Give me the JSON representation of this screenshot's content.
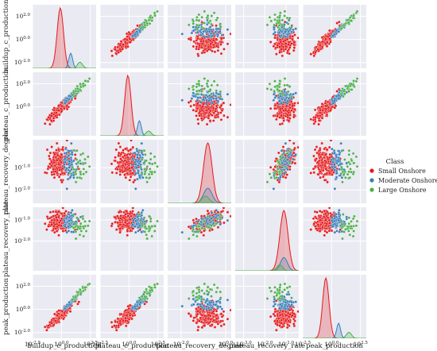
{
  "chart_data": {
    "type": "scatter",
    "subtype": "pairplot",
    "variables": [
      {
        "key": "buildup_c_production",
        "label": "buildup_c_production",
        "scale": "log",
        "lim_log10": [
          -2.5,
          3.0
        ],
        "row_ticks_log10": [
          -2.0,
          0.0,
          2.0
        ],
        "row_tick_labels": [
          "10^-2.0",
          "10^0.0",
          "10^2.0"
        ],
        "col_ticks_log10": [
          -2.5,
          0.0,
          2.5
        ],
        "col_tick_labels": [
          "10^-2.5",
          "10^0.0",
          "10^2.5"
        ]
      },
      {
        "key": "plateau_c_production",
        "label": "plateau_c_production",
        "scale": "log",
        "lim_log10": [
          -2.5,
          3.0
        ],
        "row_ticks_log10": [
          0.0,
          2.0
        ],
        "row_tick_labels": [
          "10^0.0",
          "10^2.0"
        ],
        "col_ticks_log10": [
          -2.5,
          0.0,
          2.5
        ],
        "col_tick_labels": [
          "10^-2.5",
          "10^0.0",
          "10^2.5"
        ]
      },
      {
        "key": "plateau_recovery_degree",
        "label": "plateau_recovery_degree",
        "scale": "log",
        "lim_log10": [
          -2.6,
          0.25
        ],
        "row_ticks_log10": [
          -2.0,
          -1.0
        ],
        "row_tick_labels": [
          "10^-2.0",
          "10^-1.0"
        ],
        "col_ticks_log10": [
          -2.0,
          0.0
        ],
        "col_tick_labels": [
          "10^-2.0",
          "10^0.0"
        ]
      },
      {
        "key": "plateau_recovery_rate",
        "label": "plateau_recovery_rate",
        "scale": "log",
        "lim_log10": [
          -3.4,
          -0.4
        ],
        "row_ticks_log10": [
          -2.0,
          -1.0
        ],
        "row_tick_labels": [
          "10^-2.0",
          "10^-1.0"
        ],
        "col_ticks_log10": [
          -3.0,
          -2.0,
          -1.0
        ],
        "col_tick_labels": [
          "10^-3.0",
          "10^-2.0",
          "10^-1.0"
        ]
      },
      {
        "key": "peak_production",
        "label": "peak_production",
        "scale": "log",
        "lim_log10": [
          -2.5,
          3.0
        ],
        "row_ticks_log10": [
          -2.0,
          0.0,
          2.0
        ],
        "row_tick_labels": [
          "10^-2.0",
          "10^0.0",
          "10^2.0"
        ],
        "col_ticks_log10": [
          -2.5,
          0.0,
          2.5
        ],
        "col_tick_labels": [
          "10^-2.5",
          "10^0.0",
          "10^2.5"
        ]
      }
    ],
    "hue": "Class",
    "legend": {
      "title": "Class",
      "placement": "right",
      "entries": [
        {
          "name": "Small Onshore",
          "color": "#e41a1c"
        },
        {
          "name": "Moderate Onshore",
          "color": "#377eb8"
        },
        {
          "name": "Large Onshore",
          "color": "#4daf4a"
        }
      ]
    },
    "diagonal": "kde",
    "grid": true,
    "background": "#eaeaf2",
    "class_profiles": [
      {
        "name": "Small Onshore",
        "count": 220,
        "mean_log10": [
          -0.1,
          -0.1,
          -0.8,
          -1.1,
          -0.5
        ],
        "sd_log10": [
          0.5,
          0.5,
          0.35,
          0.35,
          0.5
        ],
        "kde_peak": [
          1.0,
          1.0,
          1.0,
          1.0,
          1.0
        ]
      },
      {
        "name": "Moderate Onshore",
        "count": 60,
        "mean_log10": [
          0.8,
          0.9,
          -0.8,
          -1.1,
          0.6
        ],
        "sd_log10": [
          0.3,
          0.3,
          0.35,
          0.3,
          0.3
        ],
        "kde_peak": [
          0.25,
          0.25,
          0.25,
          0.22,
          0.25
        ]
      },
      {
        "name": "Large Onshore",
        "count": 30,
        "mean_log10": [
          1.6,
          1.7,
          -0.9,
          -1.3,
          1.5
        ],
        "sd_log10": [
          0.4,
          0.4,
          0.3,
          0.25,
          0.4
        ],
        "kde_peak": [
          0.1,
          0.08,
          0.12,
          0.1,
          0.1
        ]
      }
    ]
  }
}
